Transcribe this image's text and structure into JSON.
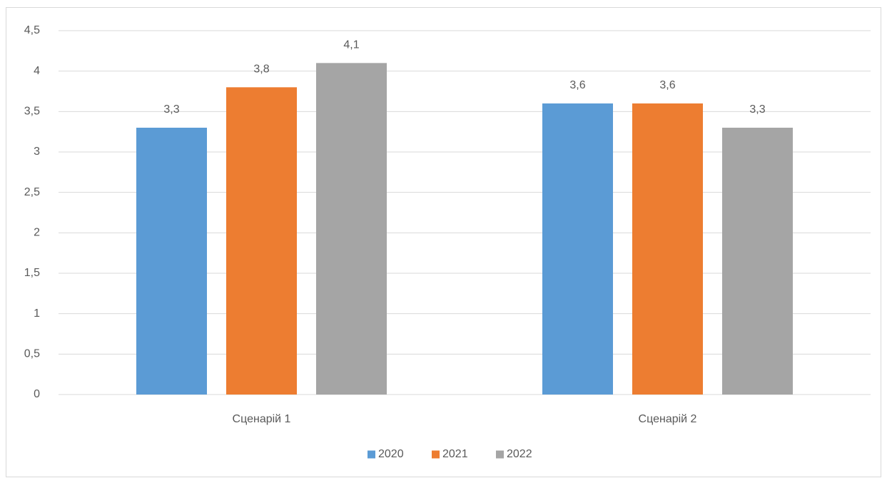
{
  "chart_data": {
    "type": "bar",
    "categories": [
      "Сценарій 1",
      "Сценарій 2"
    ],
    "series": [
      {
        "name": "2020",
        "color": "#5b9bd5",
        "values": [
          3.3,
          3.6
        ],
        "value_labels": [
          "3,3",
          "3,6"
        ]
      },
      {
        "name": "2021",
        "color": "#ed7d31",
        "values": [
          3.8,
          3.6
        ],
        "value_labels": [
          "3,8",
          "3,6"
        ]
      },
      {
        "name": "2022",
        "color": "#a5a5a5",
        "values": [
          4.1,
          3.3
        ],
        "value_labels": [
          "4,1",
          "3,3"
        ]
      }
    ],
    "ylim": [
      0,
      4.5
    ],
    "yticks": [
      0,
      {
        "value": 0.5,
        "label": "0,5"
      },
      1,
      {
        "value": 1.5,
        "label": "1,5"
      },
      2,
      {
        "value": 2.5,
        "label": "2,5"
      },
      3,
      {
        "value": 3.5,
        "label": "3,5"
      },
      4,
      {
        "value": 4.5,
        "label": "4,5"
      }
    ],
    "grid": true,
    "legend": "bottom"
  }
}
